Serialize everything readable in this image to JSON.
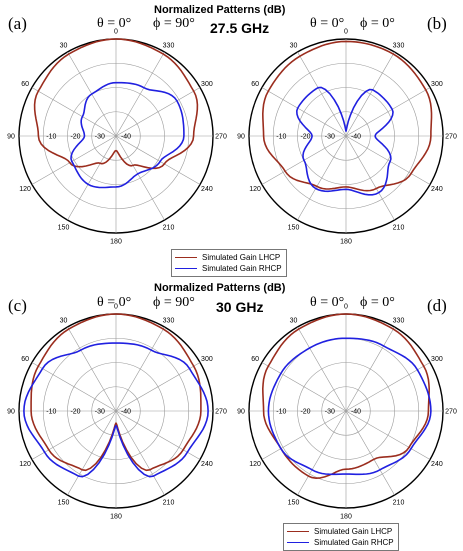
{
  "figure": {
    "top_title": "Normalized Patterns (dB)",
    "top_freq": "27.5 GHz",
    "bottom_title": "Normalized Patterns (dB)",
    "bottom_freq": "30 GHz",
    "theta_label": "θ = 0°",
    "phi90_label": "ϕ = 90°",
    "phi0_label": "ϕ = 0°",
    "panel_labels": [
      "(a)",
      "(b)",
      "(c)",
      "(d)"
    ]
  },
  "legend": {
    "lhcp": "Simulated Gain LHCP",
    "rhcp": "Simulated Gain RHCP",
    "lhcp_color": "#9b2d1e",
    "rhcp_color": "#2020e0"
  },
  "axis": {
    "angle_labels": [
      "0",
      "330",
      "300",
      "270",
      "240",
      "210",
      "180",
      "150",
      "120",
      "90",
      "60",
      "30"
    ],
    "radial_labels": [
      "-10",
      "-20",
      "-30",
      "-40"
    ]
  },
  "chart_data": [
    {
      "type": "polar",
      "panel": "(a)",
      "frequency": "27.5 GHz",
      "cut": "ϕ = 90°",
      "r_range_db": [
        -40,
        0
      ],
      "angles_deg": [
        0,
        30,
        60,
        90,
        120,
        150,
        180,
        210,
        240,
        270,
        300,
        330
      ],
      "series": [
        {
          "name": "Simulated Gain LHCP",
          "color": "#9b2d1e",
          "values_db": [
            0,
            -1,
            -3,
            -8,
            -18,
            -27,
            -34,
            -26,
            -17,
            -8,
            -3,
            -1
          ]
        },
        {
          "name": "Simulated Gain RHCP",
          "color": "#2020e0",
          "values_db": [
            -18,
            -20,
            -24,
            -27,
            -19,
            -17,
            -19,
            -22,
            -19,
            -12,
            -11,
            -17
          ]
        }
      ]
    },
    {
      "type": "polar",
      "panel": "(b)",
      "frequency": "27.5 GHz",
      "cut": "ϕ = 0°",
      "r_range_db": [
        -40,
        0
      ],
      "angles_deg": [
        0,
        30,
        60,
        90,
        120,
        150,
        180,
        210,
        240,
        270,
        300,
        330
      ],
      "series": [
        {
          "name": "Simulated Gain LHCP",
          "color": "#9b2d1e",
          "values_db": [
            -1,
            -2,
            -3,
            -6,
            -11,
            -16,
            -19,
            -15,
            -9,
            -5,
            -2,
            -1
          ]
        },
        {
          "name": "Simulated Gain RHCP",
          "color": "#2020e0",
          "values_db": [
            -38,
            -17,
            -17,
            -26,
            -20,
            -15,
            -18,
            -13,
            -19,
            -28,
            -18,
            -18
          ]
        }
      ]
    },
    {
      "type": "polar",
      "panel": "(c)",
      "frequency": "30 GHz",
      "cut": "ϕ = 90°",
      "r_range_db": [
        -40,
        0
      ],
      "angles_deg": [
        0,
        30,
        60,
        90,
        120,
        150,
        180,
        210,
        240,
        270,
        300,
        330
      ],
      "series": [
        {
          "name": "Simulated Gain LHCP",
          "color": "#9b2d1e",
          "values_db": [
            0,
            -1,
            -3,
            -5,
            -8,
            -12,
            -35,
            -12,
            -8,
            -5,
            -3,
            -1
          ]
        },
        {
          "name": "Simulated Gain RHCP",
          "color": "#2020e0",
          "values_db": [
            -12,
            -11,
            -5,
            -2,
            -6,
            -9,
            -34,
            -9,
            -6,
            -2,
            -5,
            -11
          ]
        }
      ]
    },
    {
      "type": "polar",
      "panel": "(d)",
      "frequency": "30 GHz",
      "cut": "ϕ = 0°",
      "r_range_db": [
        -40,
        0
      ],
      "angles_deg": [
        0,
        30,
        60,
        90,
        120,
        150,
        180,
        210,
        240,
        270,
        300,
        330
      ],
      "series": [
        {
          "name": "Simulated Gain LHCP",
          "color": "#9b2d1e",
          "values_db": [
            0,
            -1,
            -3,
            -6,
            -9,
            -9,
            -16,
            -17,
            -10,
            -6,
            -3,
            -1
          ]
        },
        {
          "name": "Simulated Gain RHCP",
          "color": "#2020e0",
          "values_db": [
            -10,
            -10,
            -9,
            -8,
            -9,
            -12,
            -14,
            -12,
            -9,
            -5,
            -6,
            -9
          ]
        }
      ]
    }
  ]
}
